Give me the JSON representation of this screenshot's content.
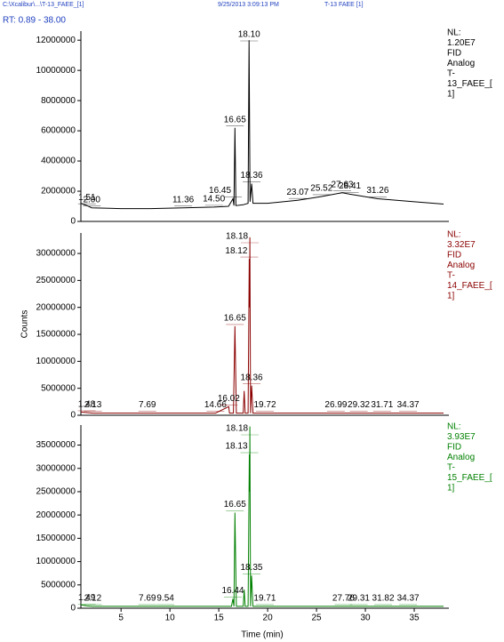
{
  "header": {
    "path": "C:\\Xcalibur\\...\\T-13_FAEE_[1]",
    "date": "9/25/2013 3:09:13 PM",
    "sample": "T-13 FAEE [1]",
    "range": "RT: 0.89 - 38.00"
  },
  "chart_data": [
    {
      "type": "line",
      "color": "#000000",
      "info": [
        "NL:",
        "1.20E7",
        "FID",
        "Analog",
        "T-",
        "13_FAEE_[",
        "1]"
      ],
      "xlim": [
        0.89,
        38
      ],
      "ylim": [
        0,
        12600000
      ],
      "yticks": [
        0,
        2000000,
        4000000,
        6000000,
        8000000,
        10000000,
        12000000
      ],
      "x": [
        0.89,
        1.51,
        2.0,
        5,
        8,
        11.36,
        14.5,
        16.0,
        16.45,
        16.55,
        16.65,
        16.75,
        17.5,
        18.0,
        18.1,
        18.2,
        18.36,
        18.5,
        20,
        23.07,
        25.52,
        27.63,
        28.41,
        31.26,
        35,
        38
      ],
      "values": [
        1200000,
        1050000,
        900000,
        850000,
        850000,
        900000,
        950000,
        1000000,
        1500000,
        1050000,
        6200000,
        1050000,
        1100000,
        1200000,
        12000000,
        1300000,
        2500000,
        1200000,
        1200000,
        1400000,
        1650000,
        1900000,
        1800000,
        1500000,
        1300000,
        1150000
      ],
      "peak_labels": [
        {
          "value": 1.51,
          "label": "1.51"
        },
        {
          "value": 2.0,
          "label": "2.00"
        },
        {
          "value": 11.36,
          "label": "11.36"
        },
        {
          "value": 14.5,
          "label": "14.50"
        },
        {
          "value": 16.45,
          "label": "16.45"
        },
        {
          "value": 16.65,
          "label": "16.65"
        },
        {
          "value": 18.1,
          "label": "18.10"
        },
        {
          "value": 18.36,
          "label": "18.36"
        },
        {
          "value": 23.07,
          "label": "23.07"
        },
        {
          "value": 25.52,
          "label": "25.52"
        },
        {
          "value": 27.63,
          "label": "27.63"
        },
        {
          "value": 28.41,
          "label": "28.41"
        },
        {
          "value": 31.26,
          "label": "31.26"
        }
      ]
    },
    {
      "type": "line",
      "color": "#8b0000",
      "ylabel": "Counts",
      "info": [
        "NL:",
        "3.32E7",
        "FID",
        "Analog",
        "T-",
        "14_FAEE_[",
        "1]"
      ],
      "xlim": [
        0.89,
        38
      ],
      "ylim": [
        0,
        33800000
      ],
      "yticks": [
        0,
        5000000,
        10000000,
        15000000,
        20000000,
        25000000,
        30000000
      ],
      "x": [
        0.89,
        1.48,
        2.13,
        7.69,
        14.66,
        16.02,
        16.1,
        16.5,
        16.65,
        16.8,
        17.5,
        17.6,
        17.7,
        18.0,
        18.12,
        18.15,
        18.18,
        18.25,
        18.36,
        18.5,
        19.72,
        26.99,
        29.32,
        31.71,
        34.37,
        38
      ],
      "values": [
        600000,
        500000,
        400000,
        400000,
        400000,
        1600000,
        400000,
        400000,
        16500000,
        400000,
        400000,
        4500000,
        400000,
        400000,
        29000000,
        20000000,
        33000000,
        400000,
        5500000,
        400000,
        400000,
        400000,
        400000,
        400000,
        400000,
        400000
      ],
      "peak_labels": [
        {
          "value": 1.48,
          "label": "1.48"
        },
        {
          "value": 2.13,
          "label": "2.13"
        },
        {
          "value": 7.69,
          "label": "7.69"
        },
        {
          "value": 14.66,
          "label": "14.66"
        },
        {
          "value": 16.02,
          "label": "16.02"
        },
        {
          "value": 16.65,
          "label": "16.65"
        },
        {
          "value": 18.12,
          "label": "18.12"
        },
        {
          "value": 18.18,
          "label": "18.18"
        },
        {
          "value": 18.36,
          "label": "18.36"
        },
        {
          "value": 19.72,
          "label": "19.72"
        },
        {
          "value": 26.99,
          "label": "26.99"
        },
        {
          "value": 29.32,
          "label": "29.32"
        },
        {
          "value": 31.71,
          "label": "31.71"
        },
        {
          "value": 34.37,
          "label": "34.37"
        }
      ]
    },
    {
      "type": "line",
      "color": "#008000",
      "xlabel": "Time (min)",
      "info": [
        "NL:",
        "3.93E7",
        "FID",
        "Analog",
        "T-",
        "15_FAEE_[",
        "1]"
      ],
      "xlim": [
        0.89,
        38
      ],
      "ylim": [
        0,
        39300000
      ],
      "xticks": [
        5,
        10,
        15,
        20,
        25,
        30,
        35
      ],
      "yticks": [
        0,
        5000000,
        10000000,
        15000000,
        20000000,
        25000000,
        30000000,
        35000000
      ],
      "x": [
        0.89,
        1.49,
        2.12,
        7.69,
        9.54,
        16.3,
        16.44,
        16.55,
        16.65,
        16.8,
        17.5,
        17.6,
        17.7,
        18.0,
        18.13,
        18.16,
        18.18,
        18.25,
        18.35,
        18.5,
        19.71,
        27.76,
        29.31,
        31.82,
        34.37,
        38
      ],
      "values": [
        700000,
        500000,
        400000,
        400000,
        400000,
        400000,
        2000000,
        400000,
        20500000,
        400000,
        400000,
        4000000,
        400000,
        400000,
        33000000,
        25000000,
        39000000,
        400000,
        7000000,
        400000,
        400000,
        400000,
        400000,
        400000,
        400000,
        400000
      ],
      "peak_labels": [
        {
          "value": 1.49,
          "label": "1.49"
        },
        {
          "value": 2.12,
          "label": "2.12"
        },
        {
          "value": 7.69,
          "label": "7.69"
        },
        {
          "value": 9.54,
          "label": "9.54"
        },
        {
          "value": 16.44,
          "label": "16.44"
        },
        {
          "value": 16.65,
          "label": "16.65"
        },
        {
          "value": 18.13,
          "label": "18.13"
        },
        {
          "value": 18.18,
          "label": "18.18"
        },
        {
          "value": 18.35,
          "label": "18.35"
        },
        {
          "value": 19.71,
          "label": "19.71"
        },
        {
          "value": 27.76,
          "label": "27.76"
        },
        {
          "value": 29.31,
          "label": "29.31"
        },
        {
          "value": 31.82,
          "label": "31.82"
        },
        {
          "value": 34.37,
          "label": "34.37"
        }
      ]
    }
  ]
}
